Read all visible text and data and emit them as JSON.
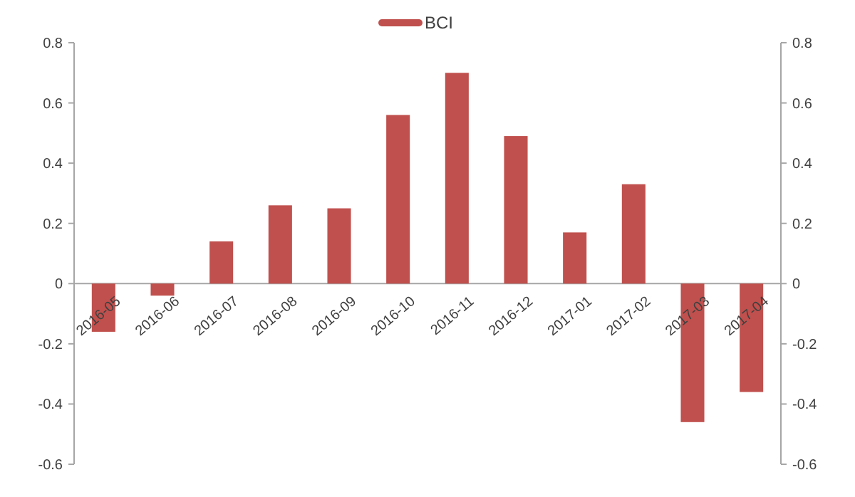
{
  "chart_data": {
    "type": "bar",
    "categories": [
      "2016-05",
      "2016-06",
      "2016-07",
      "2016-08",
      "2016-09",
      "2016-10",
      "2016-11",
      "2016-12",
      "2017-01",
      "2017-02",
      "2017-03",
      "2017-04"
    ],
    "series": [
      {
        "name": "BCI",
        "color": "#c0504d",
        "values": [
          -0.16,
          -0.04,
          0.14,
          0.26,
          0.25,
          0.56,
          0.7,
          0.49,
          0.17,
          0.33,
          -0.46,
          -0.36
        ]
      }
    ],
    "ylim": [
      -0.6,
      0.8
    ],
    "yticks": [
      -0.6,
      -0.4,
      -0.2,
      0,
      0.2,
      0.4,
      0.6,
      0.8
    ],
    "y2lim": [
      -0.6,
      0.8
    ],
    "y2ticks": [
      -0.6,
      -0.4,
      -0.2,
      0,
      0.2,
      0.4,
      0.6,
      0.8
    ],
    "legend": "top",
    "grid": false
  }
}
